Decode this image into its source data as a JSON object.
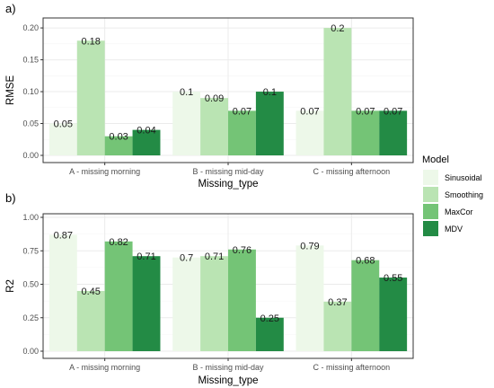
{
  "chart_data": [
    {
      "type": "bar",
      "panel_tag": "a)",
      "ylabel": "RMSE",
      "xlabel": "Missing_type",
      "ylim": [
        0,
        0.21
      ],
      "yticks": [
        0.0,
        0.05,
        0.1,
        0.15,
        0.2
      ],
      "ytick_labels": [
        "0.00",
        "0.05",
        "0.10",
        "0.15",
        "0.20"
      ],
      "grid": true,
      "categories": [
        "A - missing morning",
        "B - missing mid-day",
        "C - missing afternoon"
      ],
      "series": [
        {
          "name": "Sinusoidal",
          "values": [
            0.05,
            0.1,
            0.07
          ],
          "labels": [
            "0.05",
            "0.1",
            "0.07"
          ]
        },
        {
          "name": "Smoothing",
          "values": [
            0.18,
            0.09,
            0.2
          ],
          "labels": [
            "0.18",
            "0.09",
            "0.2"
          ]
        },
        {
          "name": "MaxCor",
          "values": [
            0.03,
            0.07,
            0.07
          ],
          "labels": [
            "0.03",
            "0.07",
            "0.07"
          ]
        },
        {
          "name": "MDV",
          "values": [
            0.04,
            0.1,
            0.07
          ],
          "labels": [
            "0.04",
            "0.1",
            "0.07"
          ]
        }
      ]
    },
    {
      "type": "bar",
      "panel_tag": "b)",
      "ylabel": "R2",
      "xlabel": "Missing_type",
      "ylim": [
        0,
        1.0
      ],
      "yticks": [
        0.0,
        0.25,
        0.5,
        0.75,
        1.0
      ],
      "ytick_labels": [
        "0.00",
        "0.25",
        "0.50",
        "0.75",
        "1.00"
      ],
      "grid": true,
      "categories": [
        "A - missing morning",
        "B - missing mid-day",
        "C - missing afternoon"
      ],
      "series": [
        {
          "name": "Sinusoidal",
          "values": [
            0.87,
            0.7,
            0.79
          ],
          "labels": [
            "0.87",
            "0.7",
            "0.79"
          ]
        },
        {
          "name": "Smoothing",
          "values": [
            0.45,
            0.71,
            0.37
          ],
          "labels": [
            "0.45",
            "0.71",
            "0.37"
          ]
        },
        {
          "name": "MaxCor",
          "values": [
            0.82,
            0.76,
            0.68
          ],
          "labels": [
            "0.82",
            "0.76",
            "0.68"
          ]
        },
        {
          "name": "MDV",
          "values": [
            0.71,
            0.25,
            0.55
          ],
          "labels": [
            "0.71",
            "0.25",
            "0.55"
          ]
        }
      ]
    }
  ],
  "legend": {
    "title": "Model",
    "placement": "right",
    "items": [
      "Sinusoidal",
      "Smoothing",
      "MaxCor",
      "MDV"
    ]
  },
  "colors": {
    "Sinusoidal": "#edf8e9",
    "Smoothing": "#bae4b3",
    "MaxCor": "#74c476",
    "MDV": "#238b45",
    "panel_border": "#333333",
    "grid": "#ebebeb",
    "tick": "#333333"
  }
}
